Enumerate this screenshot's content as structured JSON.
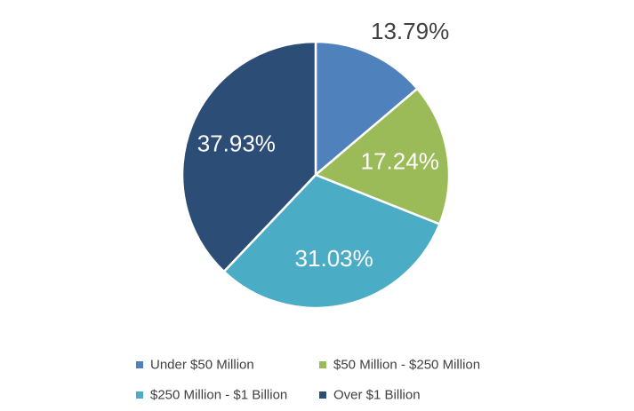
{
  "chart_data": {
    "type": "pie",
    "title": "",
    "slices": [
      {
        "label": "Under $50 Million",
        "value": 13.79,
        "display": "13.79%",
        "color": "#4F81BD"
      },
      {
        "label": "$50 Million - $250 Million",
        "value": 17.24,
        "display": "17.24%",
        "color": "#9BBB59"
      },
      {
        "label": "$250 Million - $1 Billion",
        "value": 31.03,
        "display": "31.03%",
        "color": "#4BACC6"
      },
      {
        "label": "Over $1 Billion",
        "value": 37.93,
        "display": "37.93%",
        "color": "#2C4D75"
      }
    ],
    "legend_position": "bottom"
  }
}
